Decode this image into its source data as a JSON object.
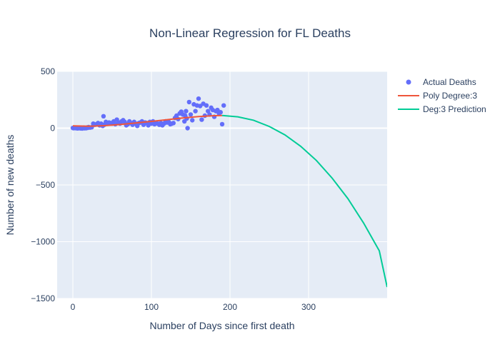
{
  "chart_data": {
    "type": "scatter",
    "title": "Non-Linear Regression for FL Deaths",
    "xlabel": "Number of Days since first death",
    "ylabel": "Number of new deaths",
    "xlim": [
      -20,
      400
    ],
    "ylim": [
      -1500,
      500
    ],
    "xticks": [
      0,
      100,
      200,
      300
    ],
    "yticks": [
      500,
      0,
      -500,
      -1000,
      -1500
    ],
    "ytick_labels": [
      "500",
      "0",
      "−500",
      "−1000",
      "−1500"
    ],
    "grid": true,
    "legend_position": "top-right",
    "colors": {
      "plot_bg": "#e5ecf6",
      "actual": "#636efa",
      "poly": "#ef553b",
      "prediction": "#00cc96",
      "text": "#2a3f5f"
    },
    "series": [
      {
        "name": "Actual Deaths",
        "mode": "markers",
        "x": [
          0,
          1,
          2,
          3,
          4,
          5,
          6,
          7,
          8,
          9,
          10,
          11,
          12,
          13,
          14,
          15,
          16,
          17,
          18,
          19,
          20,
          22,
          24,
          26,
          28,
          30,
          32,
          34,
          36,
          38,
          39,
          40,
          42,
          44,
          46,
          48,
          50,
          52,
          54,
          56,
          58,
          60,
          62,
          64,
          66,
          68,
          70,
          72,
          74,
          76,
          78,
          80,
          82,
          84,
          86,
          88,
          90,
          92,
          94,
          96,
          98,
          100,
          102,
          104,
          106,
          108,
          110,
          112,
          114,
          116,
          118,
          120,
          122,
          124,
          126,
          128,
          130,
          132,
          134,
          136,
          138,
          140,
          142,
          143,
          144,
          145,
          146,
          148,
          150,
          152,
          154,
          156,
          158,
          160,
          162,
          164,
          166,
          168,
          170,
          172,
          174,
          176,
          178,
          180,
          182,
          184,
          186,
          188,
          190,
          192
        ],
        "y": [
          2,
          0,
          1,
          3,
          0,
          2,
          -2,
          1,
          0,
          3,
          -2,
          2,
          -3,
          1,
          5,
          -1,
          2,
          0,
          6,
          3,
          10,
          5,
          8,
          40,
          30,
          35,
          45,
          25,
          40,
          20,
          105,
          30,
          55,
          40,
          50,
          45,
          40,
          60,
          35,
          75,
          50,
          40,
          60,
          70,
          55,
          25,
          35,
          60,
          45,
          30,
          55,
          40,
          20,
          45,
          50,
          60,
          30,
          50,
          45,
          25,
          55,
          40,
          60,
          35,
          50,
          40,
          30,
          45,
          25,
          40,
          60,
          50,
          55,
          35,
          40,
          45,
          90,
          110,
          80,
          130,
          145,
          120,
          60,
          110,
          150,
          85,
          0,
          230,
          120,
          70,
          210,
          150,
          200,
          260,
          195,
          75,
          215,
          110,
          200,
          150,
          120,
          180,
          160,
          100,
          150,
          160,
          130,
          140,
          35,
          200
        ]
      },
      {
        "name": "Poly Degree:3",
        "mode": "lines",
        "x": [
          0,
          20,
          40,
          60,
          80,
          100,
          120,
          140,
          160,
          180,
          190
        ],
        "y": [
          20,
          17,
          22,
          32,
          45,
          60,
          75,
          90,
          102,
          110,
          112
        ]
      },
      {
        "name": "Deg:3 Prediction",
        "mode": "lines",
        "x": [
          190,
          210,
          230,
          250,
          270,
          290,
          310,
          330,
          350,
          370,
          390,
          400
        ],
        "y": [
          112,
          100,
          70,
          15,
          -60,
          -160,
          -285,
          -440,
          -620,
          -835,
          -1080,
          -1400
        ]
      }
    ]
  }
}
